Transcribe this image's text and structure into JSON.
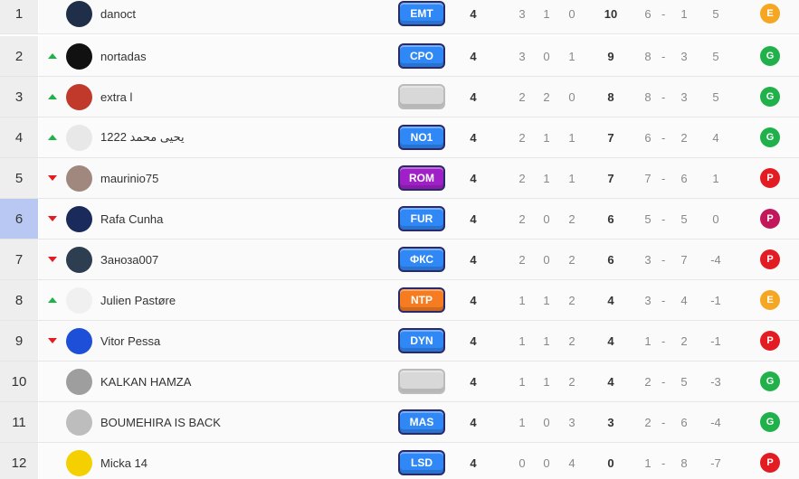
{
  "colors": {
    "up": "#21b14a",
    "down": "#e31b23",
    "highlight": "#a9bdf2",
    "form_E": "#f5a623",
    "form_G": "#21b14a",
    "form_P": "#e31b23"
  },
  "rows": [
    {
      "rank": "1",
      "trend": "none",
      "avatar": "#1f2f4a",
      "name": "danoct",
      "badge": "EMT",
      "badge_color": "#2f88f5",
      "played": "4",
      "w": "3",
      "d": "1",
      "l": "0",
      "pts": "10",
      "gf": "6",
      "ga": "1",
      "gd": "5",
      "form": "E"
    },
    {
      "rank": "2",
      "trend": "up",
      "avatar": "#111111",
      "name": "nortadas",
      "badge": "CPO",
      "badge_color": "#2f88f5",
      "played": "4",
      "w": "3",
      "d": "0",
      "l": "1",
      "pts": "9",
      "gf": "8",
      "ga": "3",
      "gd": "5",
      "form": "G"
    },
    {
      "rank": "3",
      "trend": "up",
      "avatar": "#c0392b",
      "name": "extra l",
      "badge": "",
      "badge_color": "",
      "played": "4",
      "w": "2",
      "d": "2",
      "l": "0",
      "pts": "8",
      "gf": "8",
      "ga": "3",
      "gd": "5",
      "form": "G"
    },
    {
      "rank": "4",
      "trend": "up",
      "avatar": "#e8e8e8",
      "name": "يحيى محمد 1222",
      "badge": "NO1",
      "badge_color": "#2f88f5",
      "played": "4",
      "w": "2",
      "d": "1",
      "l": "1",
      "pts": "7",
      "gf": "6",
      "ga": "2",
      "gd": "4",
      "form": "G"
    },
    {
      "rank": "5",
      "trend": "down",
      "avatar": "#a1887f",
      "name": "maurinio75",
      "badge": "ROM",
      "badge_color": "#a020c8",
      "played": "4",
      "w": "2",
      "d": "1",
      "l": "1",
      "pts": "7",
      "gf": "7",
      "ga": "6",
      "gd": "1",
      "form": "P"
    },
    {
      "rank": "6",
      "trend": "down",
      "avatar": "#1a2a5a",
      "name": "Rafa Cunha",
      "badge": "FUR",
      "badge_color": "#2f88f5",
      "played": "4",
      "w": "2",
      "d": "0",
      "l": "2",
      "pts": "6",
      "gf": "5",
      "ga": "5",
      "gd": "0",
      "form": "P",
      "highlight": true
    },
    {
      "rank": "7",
      "trend": "down",
      "avatar": "#2c3e50",
      "name": "Заноза007",
      "badge": "ФКС",
      "badge_color": "#2f88f5",
      "played": "4",
      "w": "2",
      "d": "0",
      "l": "2",
      "pts": "6",
      "gf": "3",
      "ga": "7",
      "gd": "-4",
      "form": "P"
    },
    {
      "rank": "8",
      "trend": "up",
      "avatar": "#f0f0f0",
      "name": "Julien Pastøre",
      "badge": "NTP",
      "badge_color": "#f57c20",
      "played": "4",
      "w": "1",
      "d": "1",
      "l": "2",
      "pts": "4",
      "gf": "3",
      "ga": "4",
      "gd": "-1",
      "form": "E"
    },
    {
      "rank": "9",
      "trend": "down",
      "avatar": "#1e4fd8",
      "name": "Vitor Pessa",
      "badge": "DYN",
      "badge_color": "#2f88f5",
      "played": "4",
      "w": "1",
      "d": "1",
      "l": "2",
      "pts": "4",
      "gf": "1",
      "ga": "2",
      "gd": "-1",
      "form": "P"
    },
    {
      "rank": "10",
      "trend": "none",
      "avatar": "#9e9e9e",
      "name": "KALKAN HAMZA",
      "badge": "",
      "badge_color": "",
      "played": "4",
      "w": "1",
      "d": "1",
      "l": "2",
      "pts": "4",
      "gf": "2",
      "ga": "5",
      "gd": "-3",
      "form": "G"
    },
    {
      "rank": "11",
      "trend": "none",
      "avatar": "#bdbdbd",
      "name": "BOUMEHIRA IS BACK",
      "badge": "MAS",
      "badge_color": "#2f88f5",
      "played": "4",
      "w": "1",
      "d": "0",
      "l": "3",
      "pts": "3",
      "gf": "2",
      "ga": "6",
      "gd": "-4",
      "form": "G"
    },
    {
      "rank": "12",
      "trend": "none",
      "avatar": "#f5d000",
      "name": "Micka 14",
      "badge": "LSD",
      "badge_color": "#2f88f5",
      "played": "4",
      "w": "0",
      "d": "0",
      "l": "4",
      "pts": "0",
      "gf": "1",
      "ga": "8",
      "gd": "-7",
      "form": "P"
    }
  ]
}
